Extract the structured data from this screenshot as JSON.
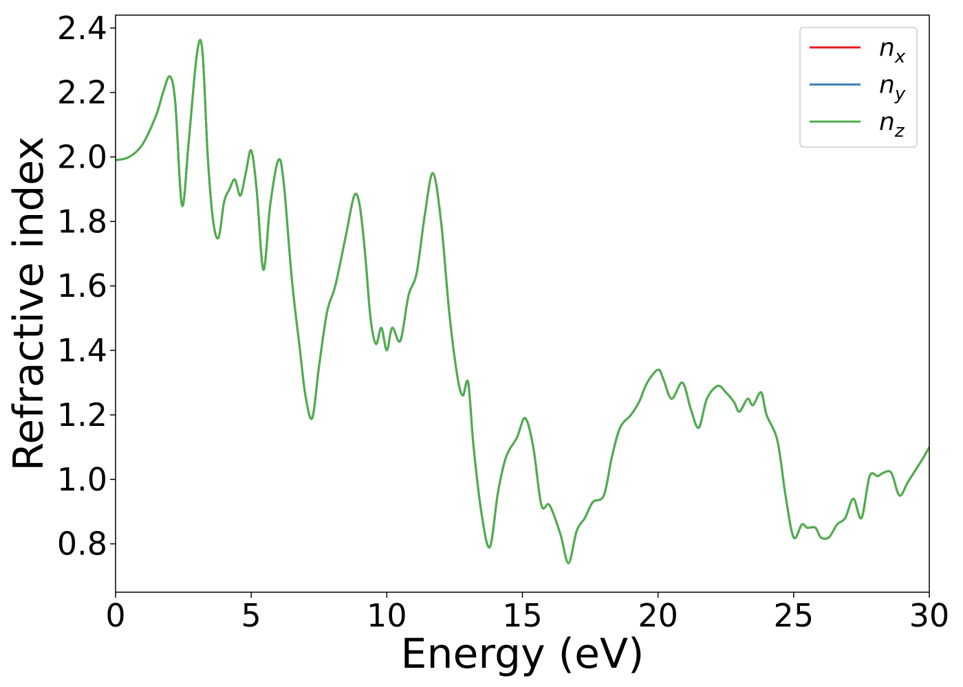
{
  "chart_data": {
    "type": "line",
    "xlabel": "Energy (eV)",
    "ylabel": "Refractive index",
    "xlim": [
      0,
      30
    ],
    "ylim": [
      0.65,
      2.44
    ],
    "xticks": [
      0,
      5,
      10,
      15,
      20,
      25,
      30
    ],
    "xtick_labels": [
      "0",
      "5",
      "10",
      "15",
      "20",
      "25",
      "30"
    ],
    "yticks": [
      0.8,
      1.0,
      1.2,
      1.4,
      1.6,
      1.8,
      2.0,
      2.2,
      2.4
    ],
    "ytick_labels": [
      "0.8",
      "1.0",
      "1.2",
      "1.4",
      "1.6",
      "1.8",
      "2.0",
      "2.2",
      "2.4"
    ],
    "grid": false,
    "legend_position": "top-right",
    "series": [
      {
        "name_base": "n",
        "name_sub": "x",
        "color": "#e41a1c"
      },
      {
        "name_base": "n",
        "name_sub": "y",
        "color": "#377eb8"
      },
      {
        "name_base": "n",
        "name_sub": "z",
        "color": "#4daf4a"
      }
    ],
    "x": [
      0.0,
      0.5,
      1.0,
      1.5,
      1.75,
      2.0,
      2.2,
      2.45,
      2.7,
      3.0,
      3.2,
      3.4,
      3.6,
      3.8,
      4.0,
      4.2,
      4.4,
      4.6,
      4.8,
      5.0,
      5.2,
      5.45,
      5.7,
      6.0,
      6.2,
      6.5,
      6.8,
      7.0,
      7.25,
      7.5,
      7.8,
      8.1,
      8.5,
      8.8,
      9.0,
      9.2,
      9.4,
      9.6,
      9.8,
      10.0,
      10.2,
      10.5,
      10.8,
      11.1,
      11.4,
      11.7,
      12.0,
      12.3,
      12.6,
      12.8,
      13.0,
      13.2,
      13.5,
      13.8,
      14.1,
      14.4,
      14.8,
      15.1,
      15.4,
      15.7,
      16.0,
      16.4,
      16.7,
      17.0,
      17.3,
      17.6,
      18.0,
      18.3,
      18.6,
      19.0,
      19.3,
      19.6,
      20.0,
      20.2,
      20.5,
      20.9,
      21.2,
      21.5,
      21.8,
      22.2,
      22.5,
      22.8,
      23.0,
      23.3,
      23.5,
      23.8,
      24.0,
      24.4,
      24.7,
      25.0,
      25.3,
      25.5,
      25.8,
      26.0,
      26.3,
      26.6,
      26.9,
      27.2,
      27.5,
      27.8,
      28.1,
      28.3,
      28.6,
      28.9,
      29.2,
      29.5,
      29.8,
      30.0
    ],
    "values": [
      1.99,
      2.0,
      2.04,
      2.13,
      2.2,
      2.25,
      2.17,
      1.85,
      2.05,
      2.32,
      2.33,
      2.0,
      1.8,
      1.75,
      1.86,
      1.9,
      1.93,
      1.88,
      1.95,
      2.02,
      1.9,
      1.65,
      1.85,
      1.99,
      1.92,
      1.62,
      1.4,
      1.26,
      1.19,
      1.35,
      1.52,
      1.6,
      1.76,
      1.88,
      1.85,
      1.7,
      1.5,
      1.42,
      1.47,
      1.4,
      1.47,
      1.43,
      1.57,
      1.64,
      1.82,
      1.95,
      1.8,
      1.52,
      1.32,
      1.26,
      1.3,
      1.1,
      0.89,
      0.79,
      0.96,
      1.07,
      1.13,
      1.19,
      1.1,
      0.92,
      0.92,
      0.83,
      0.74,
      0.84,
      0.88,
      0.93,
      0.95,
      1.07,
      1.16,
      1.2,
      1.24,
      1.3,
      1.34,
      1.31,
      1.25,
      1.3,
      1.22,
      1.16,
      1.25,
      1.29,
      1.27,
      1.24,
      1.21,
      1.25,
      1.23,
      1.27,
      1.2,
      1.12,
      0.95,
      0.82,
      0.86,
      0.85,
      0.85,
      0.82,
      0.82,
      0.86,
      0.88,
      0.94,
      0.88,
      1.01,
      1.01,
      1.02,
      1.02,
      0.95,
      0.99,
      1.03,
      1.07,
      1.1
    ]
  }
}
